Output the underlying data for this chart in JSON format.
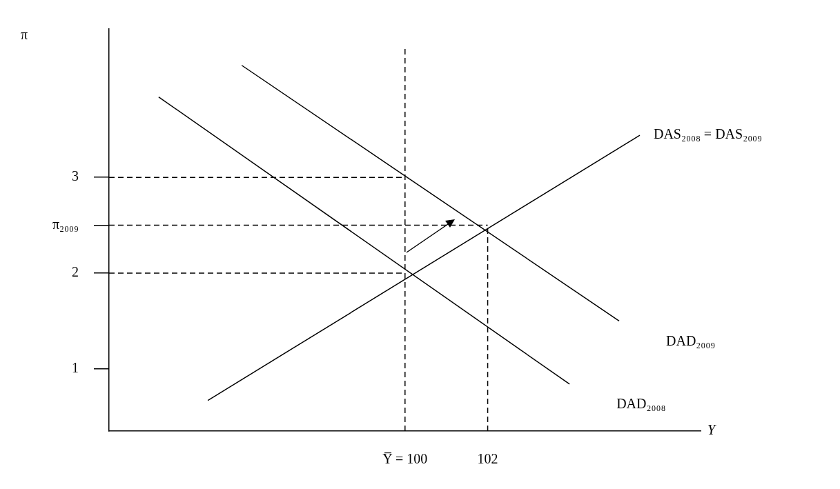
{
  "chart_data": {
    "type": "line",
    "xlabel": "Y",
    "ylabel": "π",
    "xlim": [
      92.84,
      107.15
    ],
    "ylim": [
      0.35,
      4.55
    ],
    "xticks": [
      {
        "value": 100,
        "label": "Y̅ = 100"
      },
      102
    ],
    "yticks": [
      1,
      2,
      {
        "value": 2.5,
        "label": "π₂₀₀₉"
      },
      3
    ],
    "grid": false,
    "legend": false,
    "series": [
      {
        "name": "DAS₂₀₀₈ = DAS₂₀₀₉",
        "color": "#000000",
        "x": [
          95.23,
          105.68
        ],
        "values": [
          0.67,
          3.44
        ]
      },
      {
        "name": "DAD₂₀₀₉",
        "color": "#000000",
        "x": [
          96.05,
          105.18
        ],
        "values": [
          4.17,
          1.5
        ]
      },
      {
        "name": "DAD₂₀₀₈",
        "color": "#000000",
        "x": [
          94.04,
          103.98
        ],
        "values": [
          3.84,
          0.84
        ]
      },
      {
        "color": "#000000",
        "line_style": "dashed",
        "x": [
          100,
          100
        ],
        "values": [
          0.35,
          4.35
        ]
      },
      {
        "color": "#000000",
        "line_style": "dashed",
        "x": [
          102,
          102
        ],
        "values": [
          0.35,
          2.5
        ]
      },
      {
        "color": "#000000",
        "line_style": "dashed",
        "x": [
          92.84,
          100
        ],
        "values": [
          3,
          3
        ]
      },
      {
        "color": "#000000",
        "line_style": "dashed",
        "x": [
          92.84,
          102
        ],
        "values": [
          2.5,
          2.5
        ]
      },
      {
        "color": "#000000",
        "line_style": "dashed",
        "x": [
          92.84,
          100
        ],
        "values": [
          2,
          2
        ]
      }
    ]
  }
}
